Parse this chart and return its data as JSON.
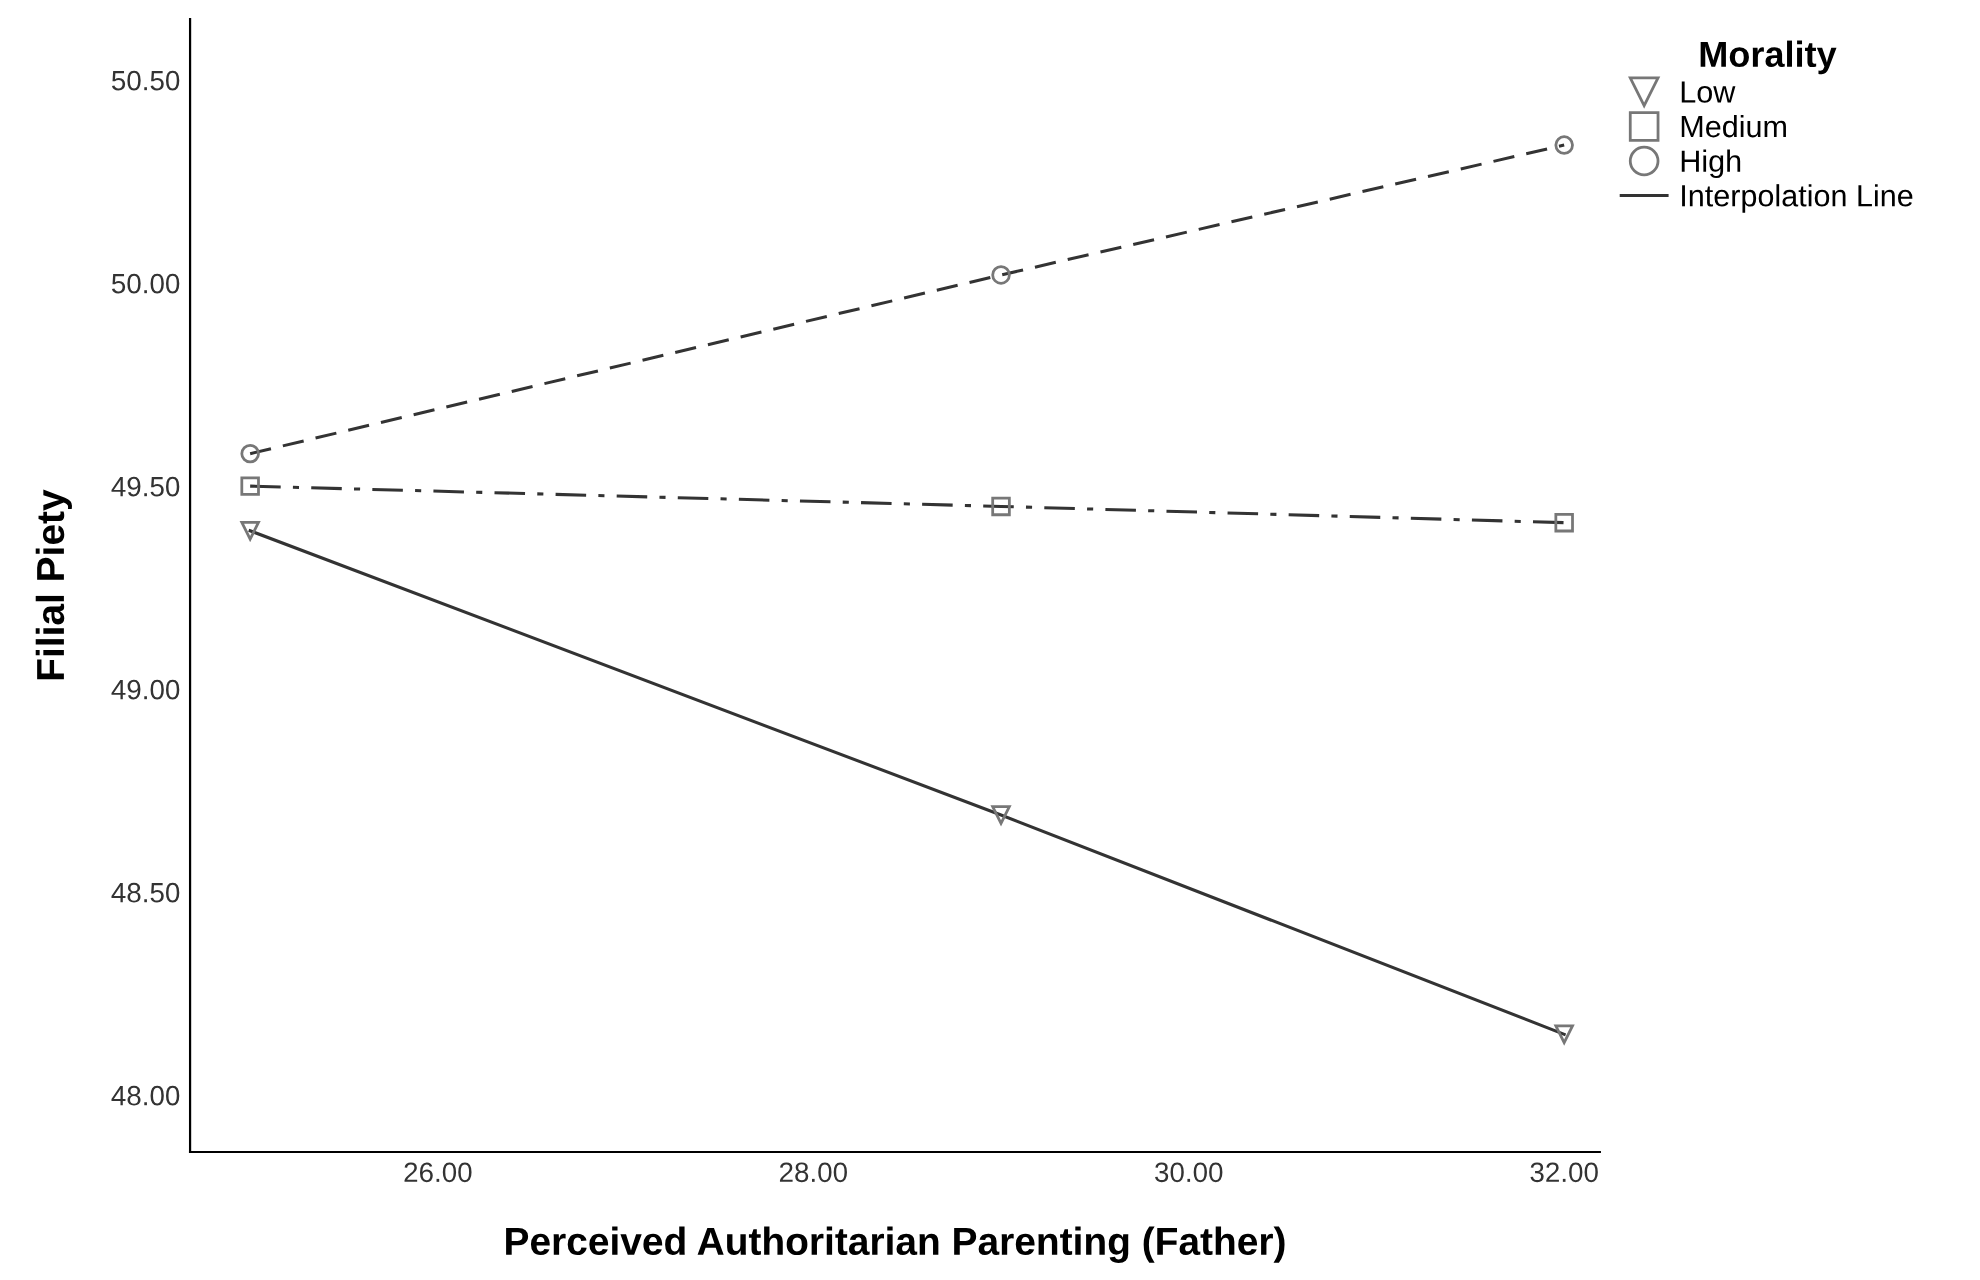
{
  "chart_data": {
    "type": "line",
    "xlabel": "Perceived Authoritarian Parenting (Father)",
    "ylabel": "Filial Piety",
    "legend_title": "Morality",
    "x": [
      25,
      29,
      32
    ],
    "series": [
      {
        "name": "Low",
        "color": "#333333",
        "values": [
          49.39,
          48.69,
          48.15
        ],
        "marker": "triangle",
        "line_style": "solid"
      },
      {
        "name": "Medium",
        "color": "#333333",
        "values": [
          49.5,
          49.45,
          49.41
        ],
        "marker": "square",
        "line_style": "dashdot"
      },
      {
        "name": "High",
        "color": "#333333",
        "values": [
          49.58,
          50.02,
          50.34
        ],
        "marker": "circle",
        "line_style": "dashed"
      }
    ],
    "annotations": [
      "Interpolation Line"
    ],
    "xlim": [
      24.68,
      32.19
    ],
    "ylim": [
      47.86,
      50.65
    ],
    "xticks": [
      {
        "value": 26,
        "label": "26.00"
      },
      {
        "value": 28,
        "label": "28.00"
      },
      {
        "value": 30,
        "label": "30.00"
      },
      {
        "value": 32,
        "label": "32.00"
      }
    ],
    "yticks": [
      {
        "value": 48,
        "label": "48.00"
      },
      {
        "value": 48.5,
        "label": "48.50"
      },
      {
        "value": 49,
        "label": "49.00"
      },
      {
        "value": 49.5,
        "label": "49.50"
      },
      {
        "value": 50,
        "label": "50.00"
      },
      {
        "value": 50.5,
        "label": "50.50"
      }
    ],
    "grid": false,
    "legend": "top right"
  }
}
